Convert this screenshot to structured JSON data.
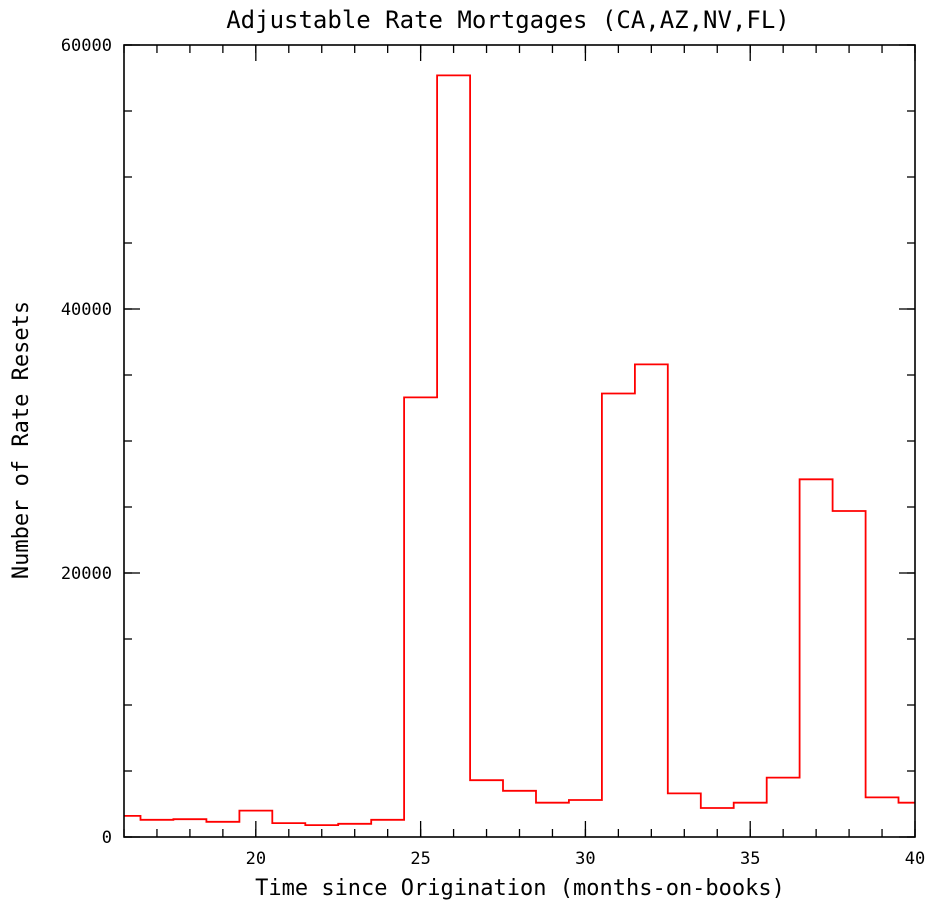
{
  "chart_data": {
    "type": "histogram-step",
    "title": "Adjustable Rate Mortgages (CA,AZ,NV,FL)",
    "xlabel": "Time since Origination (months-on-books)",
    "ylabel": "Number of Rate Resets",
    "xlim": [
      16,
      40
    ],
    "ylim": [
      0,
      60000
    ],
    "x_ticks": [
      20,
      25,
      30,
      35,
      40
    ],
    "y_ticks": [
      0,
      20000,
      40000,
      60000
    ],
    "x_minor_step": 1,
    "y_minor_step": 5000,
    "line_color": "#ff0000",
    "bins": [
      {
        "x0": 16,
        "x1": 16.5,
        "value": 1600
      },
      {
        "x0": 16.5,
        "x1": 17.5,
        "value": 1300
      },
      {
        "x0": 17.5,
        "x1": 18.5,
        "value": 1350
      },
      {
        "x0": 18.5,
        "x1": 19.5,
        "value": 1150
      },
      {
        "x0": 19.5,
        "x1": 20.5,
        "value": 2000
      },
      {
        "x0": 20.5,
        "x1": 21.5,
        "value": 1050
      },
      {
        "x0": 21.5,
        "x1": 22.5,
        "value": 900
      },
      {
        "x0": 22.5,
        "x1": 23.5,
        "value": 1000
      },
      {
        "x0": 23.5,
        "x1": 24.5,
        "value": 1300
      },
      {
        "x0": 24.5,
        "x1": 25.5,
        "value": 33300
      },
      {
        "x0": 25.5,
        "x1": 26.5,
        "value": 57700
      },
      {
        "x0": 26.5,
        "x1": 27.5,
        "value": 4300
      },
      {
        "x0": 27.5,
        "x1": 28.5,
        "value": 3500
      },
      {
        "x0": 28.5,
        "x1": 29.5,
        "value": 2600
      },
      {
        "x0": 29.5,
        "x1": 30.5,
        "value": 2800
      },
      {
        "x0": 30.5,
        "x1": 31.5,
        "value": 33600
      },
      {
        "x0": 31.5,
        "x1": 32.5,
        "value": 35800
      },
      {
        "x0": 32.5,
        "x1": 33.5,
        "value": 3300
      },
      {
        "x0": 33.5,
        "x1": 34.5,
        "value": 2200
      },
      {
        "x0": 34.5,
        "x1": 35.5,
        "value": 2600
      },
      {
        "x0": 35.5,
        "x1": 36.5,
        "value": 4500
      },
      {
        "x0": 36.5,
        "x1": 37.5,
        "value": 27100
      },
      {
        "x0": 37.5,
        "x1": 38.5,
        "value": 24700
      },
      {
        "x0": 38.5,
        "x1": 39.5,
        "value": 3000
      },
      {
        "x0": 39.5,
        "x1": 40,
        "value": 2600
      }
    ]
  }
}
